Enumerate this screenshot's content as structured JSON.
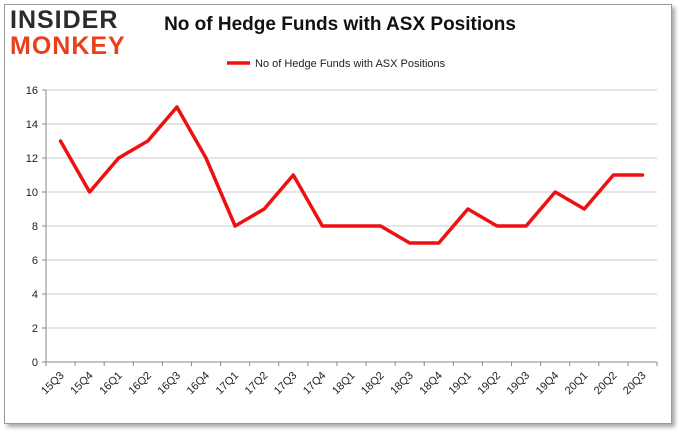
{
  "brand": {
    "line1": "INSIDER",
    "line2": "MONKEY",
    "dark_color": "#2b2b2b",
    "accent_color": "#e8401c"
  },
  "chart_data": {
    "type": "line",
    "title": "No of Hedge Funds with ASX Positions",
    "xlabel": "",
    "ylabel": "",
    "ylim": [
      0,
      16
    ],
    "yticks": [
      0,
      2,
      4,
      6,
      8,
      10,
      12,
      14,
      16
    ],
    "grid": true,
    "legend_position": "top-center",
    "categories": [
      "15Q3",
      "15Q4",
      "16Q1",
      "16Q2",
      "16Q3",
      "16Q4",
      "17Q1",
      "17Q2",
      "17Q3",
      "17Q4",
      "18Q1",
      "18Q2",
      "18Q3",
      "18Q4",
      "19Q1",
      "19Q2",
      "19Q3",
      "19Q4",
      "20Q1",
      "20Q2",
      "20Q3"
    ],
    "series": [
      {
        "name": "No of Hedge Funds with ASX Positions",
        "color": "#ee1111",
        "values": [
          13,
          10,
          12,
          13,
          15,
          12,
          8,
          9,
          11,
          8,
          8,
          8,
          7,
          7,
          9,
          8,
          8,
          10,
          9,
          11,
          11
        ]
      }
    ]
  }
}
